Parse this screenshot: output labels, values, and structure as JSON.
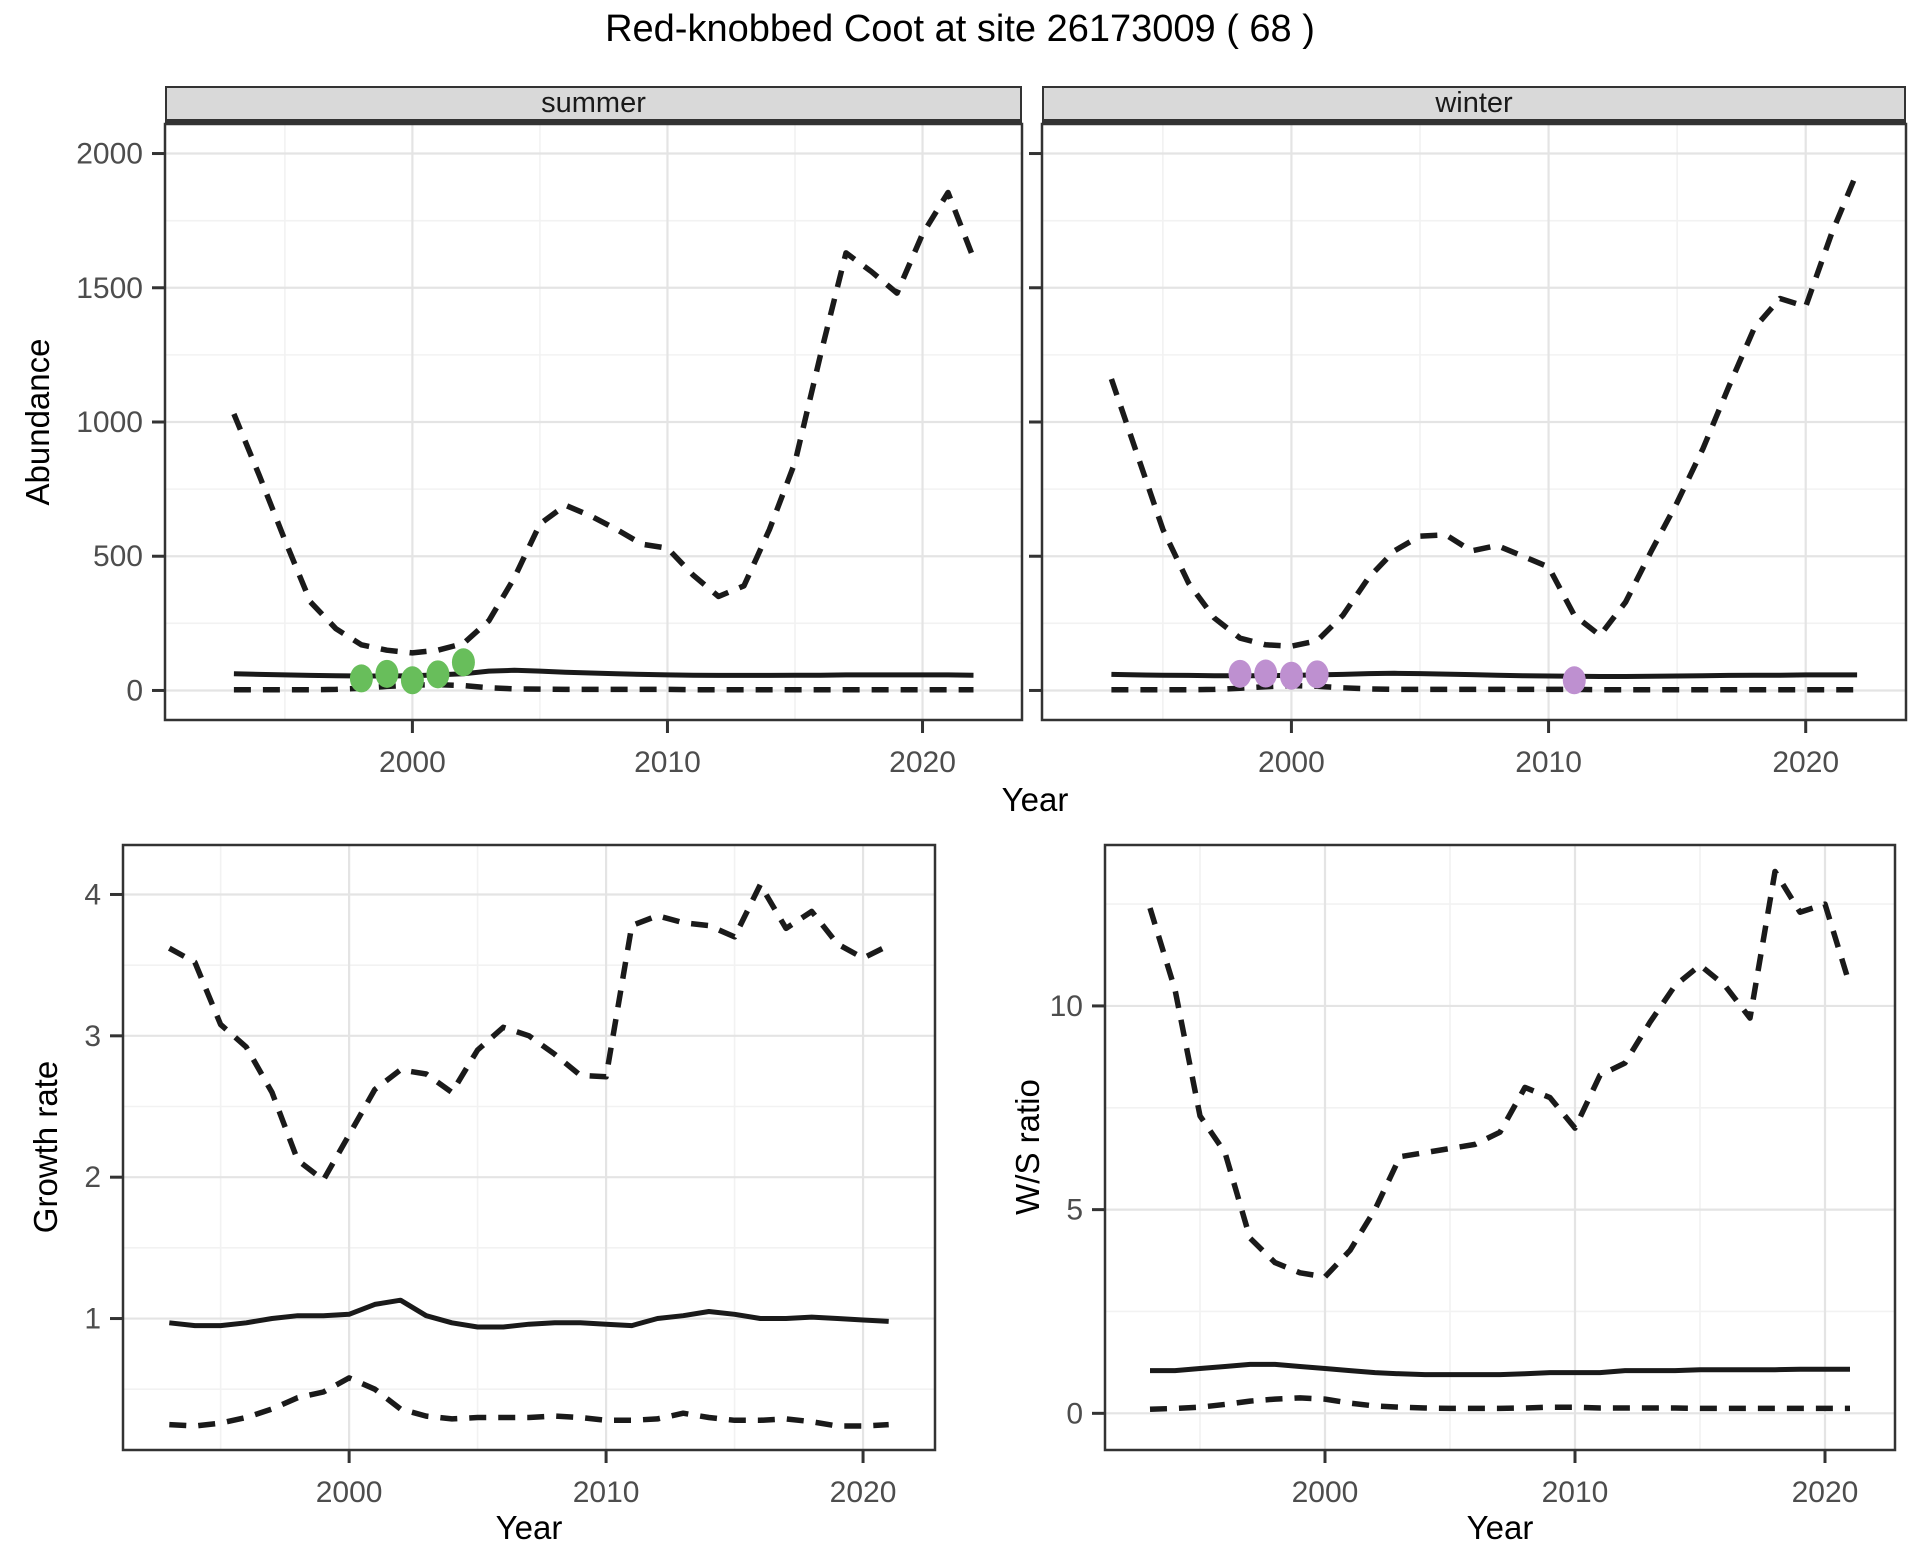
{
  "title": "Red-knobbed Coot at site 26173009 ( 68 )",
  "colors": {
    "line": "#1a1a1a",
    "panel_border": "#333333",
    "strip_bg": "#d9d9d9",
    "grid_major": "#e4e4e4",
    "grid_minor": "#f2f2f2",
    "tick_text": "#4d4d4d",
    "observed_summer": "#68be5b",
    "observed_winter": "#be90d0"
  },
  "chart_data": [
    {
      "type": "line",
      "panel": "abundance-summer",
      "facet_label": "summer",
      "xlabel": "Year",
      "ylabel": "Abundance",
      "xlim": [
        1990.3,
        2023.9
      ],
      "ylim": [
        -110,
        2110
      ],
      "xticks": [
        2000,
        2010,
        2020
      ],
      "yticks": [
        0,
        500,
        1000,
        1500,
        2000
      ],
      "xminor": [
        1995,
        2005,
        2015
      ],
      "yminor": [
        250,
        750,
        1250,
        1750
      ],
      "x_first": 1993,
      "series": [
        {
          "name": "upper-95ci",
          "style": "dashed",
          "values": [
            1030,
            800,
            560,
            330,
            230,
            170,
            150,
            140,
            150,
            175,
            260,
            420,
            620,
            690,
            650,
            600,
            545,
            530,
            430,
            350,
            390,
            600,
            850,
            1250,
            1630,
            1560,
            1480,
            1700,
            1855,
            1610
          ]
        },
        {
          "name": "median",
          "style": "solid",
          "values": [
            62,
            60,
            58,
            56,
            55,
            54,
            54,
            55,
            58,
            62,
            72,
            75,
            72,
            68,
            65,
            62,
            60,
            58,
            57,
            56,
            56,
            56,
            57,
            57,
            58,
            58,
            58,
            58,
            58,
            57
          ]
        },
        {
          "name": "lower-95ci",
          "style": "dashed",
          "values": [
            3,
            3,
            3,
            3,
            4,
            8,
            15,
            20,
            22,
            18,
            10,
            6,
            5,
            4,
            4,
            4,
            4,
            4,
            3,
            3,
            3,
            3,
            3,
            3,
            3,
            3,
            3,
            3,
            3,
            3
          ]
        }
      ],
      "points": {
        "name": "observed-counts-summer",
        "color": "#68be5b",
        "x": [
          1998,
          1999,
          2000,
          2001,
          2002
        ],
        "y": [
          45,
          62,
          38,
          60,
          105
        ]
      }
    },
    {
      "type": "line",
      "panel": "abundance-winter",
      "facet_label": "winter",
      "xlabel": "Year",
      "ylabel": "Abundance",
      "xlim": [
        1990.3,
        2023.9
      ],
      "ylim": [
        -110,
        2110
      ],
      "xticks": [
        2000,
        2010,
        2020
      ],
      "yticks": [
        0,
        500,
        1000,
        1500,
        2000
      ],
      "xminor": [
        1995,
        2005,
        2015
      ],
      "yminor": [
        250,
        750,
        1250,
        1750
      ],
      "x_first": 1993,
      "series": [
        {
          "name": "upper-95ci",
          "style": "dashed",
          "values": [
            1160,
            880,
            600,
            400,
            270,
            195,
            170,
            165,
            185,
            280,
            420,
            520,
            575,
            580,
            520,
            540,
            500,
            460,
            280,
            205,
            330,
            520,
            700,
            900,
            1130,
            1350,
            1460,
            1430,
            1700,
            1930
          ]
        },
        {
          "name": "median",
          "style": "solid",
          "values": [
            60,
            58,
            57,
            56,
            55,
            55,
            55,
            56,
            58,
            60,
            63,
            64,
            63,
            61,
            59,
            57,
            55,
            54,
            53,
            52,
            52,
            53,
            54,
            55,
            56,
            57,
            57,
            58,
            58,
            58
          ]
        },
        {
          "name": "lower-95ci",
          "style": "dashed",
          "values": [
            3,
            3,
            3,
            3,
            4,
            8,
            14,
            18,
            16,
            10,
            6,
            4,
            4,
            4,
            4,
            4,
            4,
            4,
            4,
            3,
            3,
            3,
            3,
            3,
            3,
            3,
            3,
            3,
            3,
            3
          ]
        }
      ],
      "points": {
        "name": "observed-counts-winter",
        "color": "#be90d0",
        "x": [
          1998,
          1999,
          2000,
          2001,
          2011
        ],
        "y": [
          62,
          63,
          55,
          60,
          38
        ]
      }
    },
    {
      "type": "line",
      "panel": "growth-rate",
      "facet_label": "",
      "xlabel": "Year",
      "ylabel": "Growth rate",
      "xlim": [
        1991.2,
        2022.8
      ],
      "ylim": [
        0.07,
        4.35
      ],
      "xticks": [
        2000,
        2010,
        2020
      ],
      "yticks": [
        1,
        2,
        3,
        4
      ],
      "xminor": [
        1995,
        2005,
        2015
      ],
      "yminor": [
        0.5,
        1.5,
        2.5,
        3.5
      ],
      "x_first": 1993,
      "series": [
        {
          "name": "upper-95ci",
          "style": "dashed",
          "values": [
            3.62,
            3.52,
            3.08,
            2.92,
            2.6,
            2.12,
            1.98,
            2.3,
            2.62,
            2.76,
            2.73,
            2.6,
            2.9,
            3.06,
            3.0,
            2.87,
            2.72,
            2.71,
            3.78,
            3.85,
            3.8,
            3.78,
            3.7,
            4.07,
            3.76,
            3.88,
            3.65,
            3.55,
            3.64
          ]
        },
        {
          "name": "median",
          "style": "solid",
          "values": [
            0.97,
            0.95,
            0.95,
            0.97,
            1.0,
            1.02,
            1.02,
            1.03,
            1.1,
            1.13,
            1.02,
            0.97,
            0.94,
            0.94,
            0.96,
            0.97,
            0.97,
            0.96,
            0.95,
            1.0,
            1.02,
            1.05,
            1.03,
            1.0,
            1.0,
            1.01,
            1.0,
            0.99,
            0.98
          ]
        },
        {
          "name": "lower-95ci",
          "style": "dashed",
          "values": [
            0.25,
            0.24,
            0.26,
            0.3,
            0.36,
            0.44,
            0.48,
            0.58,
            0.5,
            0.36,
            0.31,
            0.29,
            0.3,
            0.3,
            0.3,
            0.31,
            0.3,
            0.28,
            0.28,
            0.29,
            0.33,
            0.3,
            0.28,
            0.28,
            0.29,
            0.27,
            0.24,
            0.24,
            0.25
          ]
        }
      ]
    },
    {
      "type": "line",
      "panel": "ws-ratio",
      "facet_label": "",
      "xlabel": "Year",
      "ylabel": "W/S ratio",
      "xlim": [
        1991.2,
        2022.8
      ],
      "ylim": [
        -0.9,
        13.95
      ],
      "xticks": [
        2000,
        2010,
        2020
      ],
      "yticks": [
        0,
        5,
        10
      ],
      "xminor": [
        1995,
        2005,
        2015
      ],
      "yminor": [
        2.5,
        7.5,
        12.5
      ],
      "x_first": 1993,
      "series": [
        {
          "name": "upper-95ci",
          "style": "dashed",
          "values": [
            12.4,
            10.4,
            7.3,
            6.4,
            4.3,
            3.7,
            3.45,
            3.35,
            4.0,
            5.0,
            6.3,
            6.4,
            6.5,
            6.6,
            6.9,
            8.0,
            7.75,
            7.0,
            8.3,
            8.6,
            9.6,
            10.5,
            11.0,
            10.5,
            9.7,
            13.3,
            12.3,
            12.5,
            10.5
          ]
        },
        {
          "name": "median",
          "style": "solid",
          "values": [
            1.05,
            1.05,
            1.1,
            1.15,
            1.2,
            1.2,
            1.15,
            1.1,
            1.05,
            1.0,
            0.97,
            0.95,
            0.95,
            0.95,
            0.95,
            0.97,
            1.0,
            1.0,
            1.0,
            1.05,
            1.05,
            1.05,
            1.07,
            1.07,
            1.07,
            1.07,
            1.08,
            1.08,
            1.08
          ]
        },
        {
          "name": "lower-95ci",
          "style": "dashed",
          "values": [
            0.1,
            0.12,
            0.15,
            0.22,
            0.3,
            0.35,
            0.38,
            0.35,
            0.25,
            0.18,
            0.15,
            0.13,
            0.12,
            0.12,
            0.12,
            0.13,
            0.15,
            0.15,
            0.13,
            0.13,
            0.13,
            0.13,
            0.12,
            0.12,
            0.12,
            0.12,
            0.12,
            0.12,
            0.12
          ]
        }
      ]
    }
  ]
}
